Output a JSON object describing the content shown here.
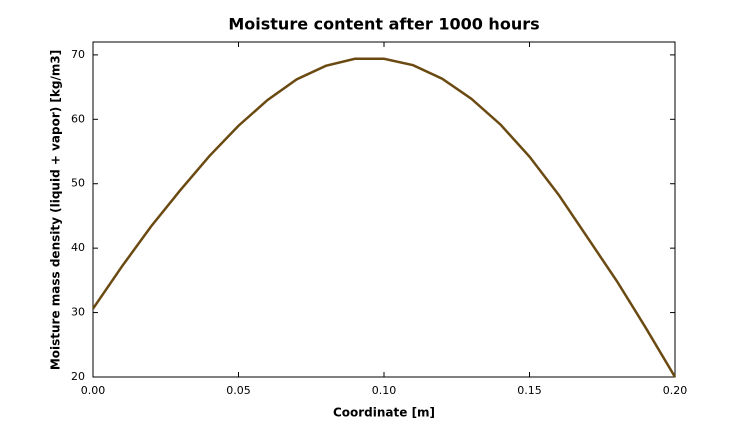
{
  "chart_data": {
    "type": "line",
    "title": "Moisture content after 1000 hours",
    "x_label": "Coordinate [m]",
    "y_label": "Moisture mass density (liquid + vapor) [kg/m3]",
    "x": [
      0,
      0.01,
      0.02,
      0.03,
      0.04,
      0.05,
      0.06,
      0.07,
      0.08,
      0.09,
      0.1,
      0.11,
      0.12,
      0.13,
      0.14,
      0.15,
      0.16,
      0.17,
      0.18,
      0.19,
      0.2
    ],
    "series": [
      {
        "color": "#6b4a12",
        "values": [
          30.6,
          37.2,
          43.4,
          49.0,
          54.3,
          59.0,
          63.0,
          66.2,
          68.3,
          69.4,
          69.4,
          68.4,
          66.3,
          63.2,
          59.2,
          54.2,
          48.3,
          41.6,
          34.9,
          27.6,
          20.0
        ]
      }
    ],
    "xlim": [
      0,
      0.2
    ],
    "xticks": [
      {
        "value": 0,
        "label": "0.00"
      },
      {
        "value": 0.05,
        "label": "0.05"
      },
      {
        "value": 0.1,
        "label": "0.10"
      },
      {
        "value": 0.15,
        "label": "0.15"
      },
      {
        "value": 0.2,
        "label": "0.20"
      }
    ],
    "ylim": [
      20,
      72
    ],
    "yticks": [
      20,
      30,
      40,
      50,
      60,
      70
    ]
  }
}
